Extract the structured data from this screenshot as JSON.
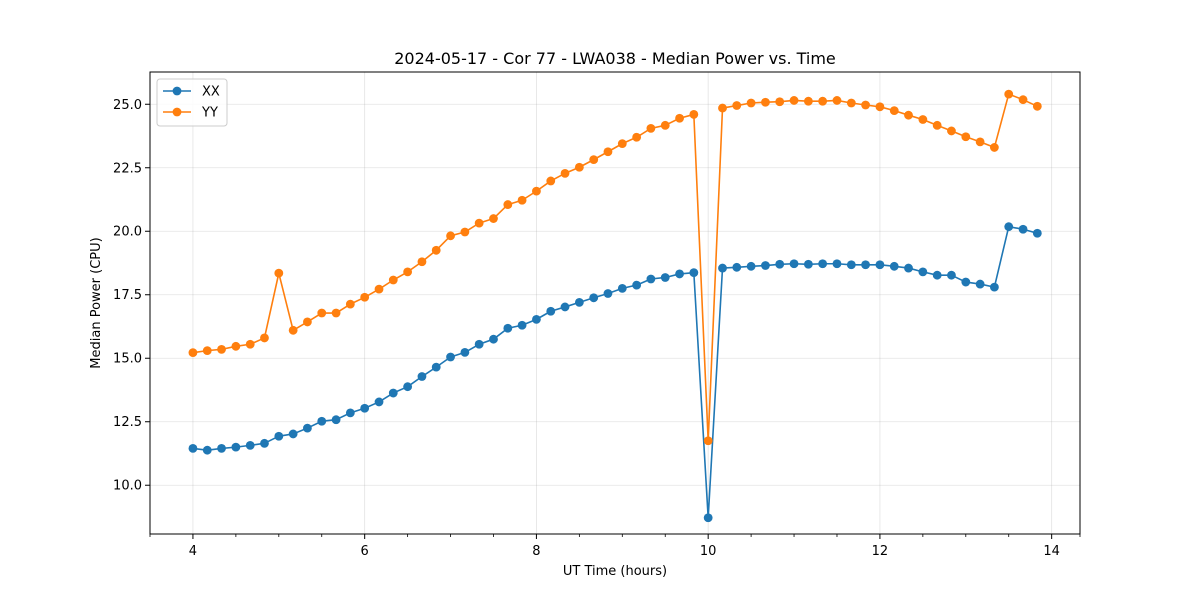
{
  "chart_data": {
    "type": "line",
    "title": "2024-05-17 - Cor 77 - LWA038 - Median Power vs. Time",
    "xlabel": "UT Time (hours)",
    "ylabel": "Median Power (CPU)",
    "xlim": [
      3.5,
      14.33
    ],
    "ylim": [
      8.08,
      26.27
    ],
    "xticks": [
      4,
      6,
      8,
      10,
      12,
      14
    ],
    "xtick_labels": [
      "4",
      "6",
      "8",
      "10",
      "12",
      "14"
    ],
    "yticks": [
      10.0,
      12.5,
      15.0,
      17.5,
      20.0,
      22.5,
      25.0
    ],
    "ytick_labels": [
      "10.0",
      "12.5",
      "15.0",
      "17.5",
      "20.0",
      "22.5",
      "25.0"
    ],
    "grid": true,
    "legend_position": "top-left",
    "x": [
      4.0,
      4.167,
      4.333,
      4.5,
      4.667,
      4.833,
      5.0,
      5.167,
      5.333,
      5.5,
      5.667,
      5.833,
      6.0,
      6.167,
      6.333,
      6.5,
      6.667,
      6.833,
      7.0,
      7.167,
      7.333,
      7.5,
      7.667,
      7.833,
      8.0,
      8.167,
      8.333,
      8.5,
      8.667,
      8.833,
      9.0,
      9.167,
      9.333,
      9.5,
      9.667,
      9.833,
      10.0,
      10.167,
      10.333,
      10.5,
      10.667,
      10.833,
      11.0,
      11.167,
      11.333,
      11.5,
      11.667,
      11.833,
      12.0,
      12.167,
      12.333,
      12.5,
      12.667,
      12.833,
      13.0,
      13.167,
      13.333,
      13.5,
      13.667,
      13.833
    ],
    "series": [
      {
        "name": "XX",
        "color": "#1f77b4",
        "values": [
          11.45,
          11.38,
          11.45,
          11.5,
          11.57,
          11.65,
          11.93,
          12.02,
          12.25,
          12.52,
          12.58,
          12.85,
          13.03,
          13.28,
          13.63,
          13.88,
          14.28,
          14.65,
          15.05,
          15.23,
          15.55,
          15.75,
          16.18,
          16.3,
          16.53,
          16.85,
          17.02,
          17.2,
          17.38,
          17.55,
          17.75,
          17.88,
          18.12,
          18.18,
          18.32,
          18.37,
          8.72,
          18.55,
          18.58,
          18.62,
          18.65,
          18.7,
          18.72,
          18.7,
          18.72,
          18.72,
          18.68,
          18.68,
          18.68,
          18.62,
          18.55,
          18.4,
          18.27,
          18.27,
          18.0,
          17.92,
          17.8,
          20.18,
          20.08,
          19.92
        ]
      },
      {
        "name": "YY",
        "color": "#ff7f0e",
        "values": [
          15.22,
          15.3,
          15.35,
          15.47,
          15.55,
          15.8,
          18.35,
          16.1,
          16.43,
          16.78,
          16.78,
          17.13,
          17.4,
          17.72,
          18.08,
          18.4,
          18.8,
          19.25,
          19.82,
          19.97,
          20.32,
          20.5,
          21.05,
          21.22,
          21.58,
          21.98,
          22.28,
          22.52,
          22.82,
          23.13,
          23.45,
          23.7,
          24.05,
          24.17,
          24.45,
          24.6,
          11.75,
          24.85,
          24.95,
          25.05,
          25.08,
          25.1,
          25.15,
          25.12,
          25.12,
          25.15,
          25.05,
          24.97,
          24.9,
          24.75,
          24.57,
          24.4,
          24.17,
          23.95,
          23.72,
          23.52,
          23.3,
          25.4,
          25.18,
          24.92
        ]
      }
    ]
  }
}
